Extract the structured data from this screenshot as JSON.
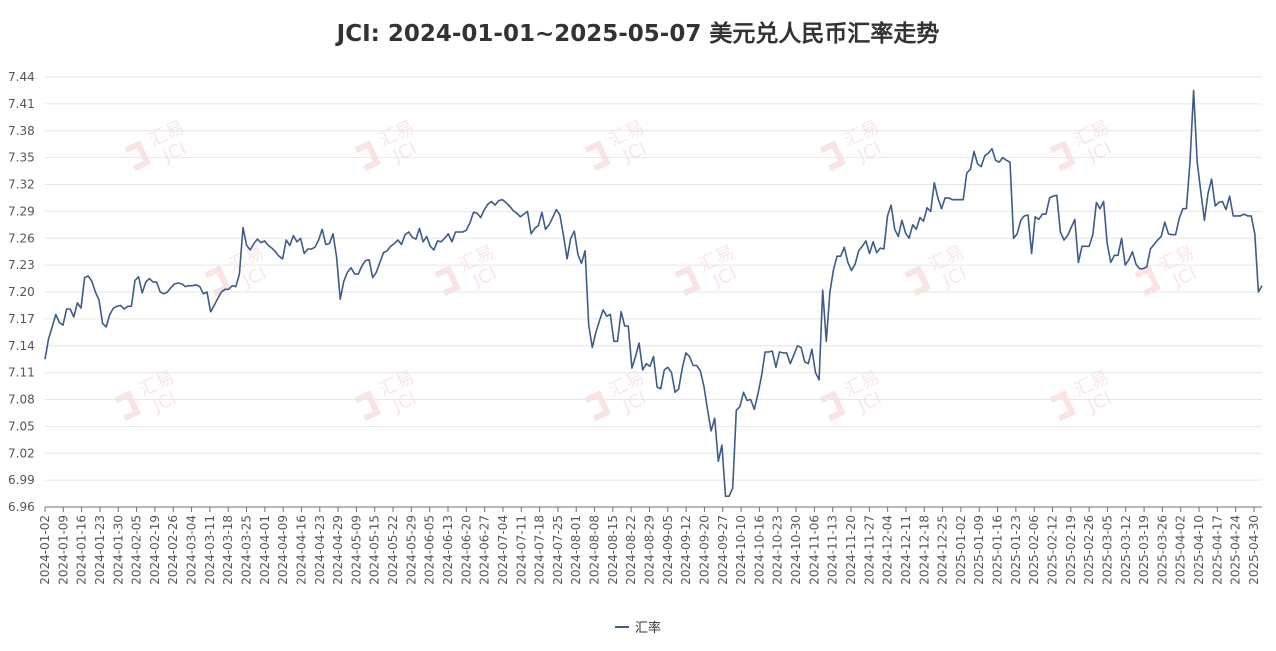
{
  "title": "JCI: 2024-01-01~2025-05-07 美元兑人民币汇率走势",
  "legend": {
    "label": "汇率"
  },
  "watermark": {
    "text": "汇易",
    "subtext": "JCI"
  },
  "colors": {
    "line": "#3e5b8a",
    "grid": "#e6e6e6",
    "axis": "#6e7079",
    "watermark": "#f2c9c9"
  },
  "chart_data": {
    "type": "line",
    "title": "JCI: 2024-01-01~2025-05-07 美元兑人民币汇率走势",
    "xlabel": "",
    "ylabel": "",
    "ylim": [
      6.96,
      7.44
    ],
    "yticks": [
      6.96,
      6.99,
      7.02,
      7.05,
      7.08,
      7.11,
      7.14,
      7.17,
      7.2,
      7.23,
      7.26,
      7.29,
      7.32,
      7.35,
      7.38,
      7.41,
      7.44
    ],
    "grid": "horizontal",
    "legend_position": "bottom",
    "x_tick_labels": [
      "2024-01-02",
      "2024-01-09",
      "2024-01-16",
      "2024-01-23",
      "2024-01-30",
      "2024-02-05",
      "2024-02-19",
      "2024-02-26",
      "2024-03-04",
      "2024-03-11",
      "2024-03-18",
      "2024-03-25",
      "2024-04-01",
      "2024-04-09",
      "2024-04-16",
      "2024-04-23",
      "2024-04-29",
      "2024-05-09",
      "2024-05-15",
      "2024-05-22",
      "2024-05-29",
      "2024-06-05",
      "2024-06-13",
      "2024-06-20",
      "2024-06-27",
      "2024-07-04",
      "2024-07-11",
      "2024-07-18",
      "2024-07-25",
      "2024-08-01",
      "2024-08-08",
      "2024-08-15",
      "2024-08-22",
      "2024-08-29",
      "2024-09-05",
      "2024-09-12",
      "2024-09-20",
      "2024-09-27",
      "2024-10-10",
      "2024-10-16",
      "2024-10-23",
      "2024-10-30",
      "2024-11-06",
      "2024-11-13",
      "2024-11-20",
      "2024-11-27",
      "2024-12-04",
      "2024-12-11",
      "2024-12-18",
      "2024-12-25",
      "2025-01-02",
      "2025-01-09",
      "2025-01-16",
      "2025-01-23",
      "2025-02-06",
      "2025-02-12",
      "2025-02-19",
      "2025-02-26",
      "2025-03-05",
      "2025-03-12",
      "2025-03-19",
      "2025-03-26",
      "2025-04-02",
      "2025-04-10",
      "2025-04-17",
      "2025-04-24",
      "2025-04-30"
    ],
    "series": [
      {
        "name": "汇率",
        "values": [
          7.125,
          7.148,
          7.161,
          7.175,
          7.166,
          7.163,
          7.181,
          7.181,
          7.172,
          7.188,
          7.182,
          7.216,
          7.218,
          7.212,
          7.2,
          7.191,
          7.165,
          7.161,
          7.175,
          7.182,
          7.184,
          7.185,
          7.181,
          7.184,
          7.184,
          7.213,
          7.217,
          7.199,
          7.211,
          7.215,
          7.211,
          7.211,
          7.2,
          7.198,
          7.2,
          7.205,
          7.209,
          7.21,
          7.209,
          7.206,
          7.207,
          7.207,
          7.208,
          7.206,
          7.198,
          7.2,
          7.178,
          7.185,
          7.193,
          7.2,
          7.203,
          7.203,
          7.207,
          7.206,
          7.22,
          7.272,
          7.252,
          7.247,
          7.254,
          7.259,
          7.255,
          7.257,
          7.252,
          7.249,
          7.245,
          7.24,
          7.237,
          7.258,
          7.252,
          7.263,
          7.256,
          7.26,
          7.243,
          7.248,
          7.248,
          7.25,
          7.258,
          7.27,
          7.253,
          7.254,
          7.265,
          7.239,
          7.192,
          7.212,
          7.222,
          7.227,
          7.22,
          7.22,
          7.229,
          7.235,
          7.236,
          7.216,
          7.222,
          7.233,
          7.244,
          7.246,
          7.251,
          7.254,
          7.258,
          7.253,
          7.264,
          7.267,
          7.261,
          7.259,
          7.271,
          7.256,
          7.262,
          7.251,
          7.247,
          7.257,
          7.256,
          7.26,
          7.265,
          7.256,
          7.267,
          7.267,
          7.267,
          7.269,
          7.277,
          7.289,
          7.288,
          7.283,
          7.292,
          7.298,
          7.301,
          7.297,
          7.302,
          7.303,
          7.3,
          7.296,
          7.291,
          7.288,
          7.284,
          7.287,
          7.29,
          7.265,
          7.271,
          7.274,
          7.289,
          7.27,
          7.275,
          7.283,
          7.292,
          7.286,
          7.263,
          7.237,
          7.26,
          7.268,
          7.242,
          7.232,
          7.246,
          7.163,
          7.138,
          7.155,
          7.168,
          7.18,
          7.173,
          7.175,
          7.145,
          7.145,
          7.178,
          7.162,
          7.162,
          7.115,
          7.128,
          7.143,
          7.113,
          7.12,
          7.117,
          7.128,
          7.094,
          7.092,
          7.113,
          7.116,
          7.11,
          7.088,
          7.092,
          7.115,
          7.132,
          7.128,
          7.118,
          7.118,
          7.112,
          7.095,
          7.069,
          7.045,
          7.059,
          7.011,
          7.029,
          6.972,
          6.972,
          6.981,
          7.068,
          7.072,
          7.088,
          7.079,
          7.08,
          7.069,
          7.086,
          7.106,
          7.133,
          7.133,
          7.134,
          7.116,
          7.133,
          7.132,
          7.132,
          7.12,
          7.13,
          7.14,
          7.138,
          7.122,
          7.12,
          7.136,
          7.11,
          7.102,
          7.202,
          7.145,
          7.2,
          7.225,
          7.24,
          7.24,
          7.25,
          7.233,
          7.224,
          7.231,
          7.246,
          7.251,
          7.257,
          7.243,
          7.256,
          7.244,
          7.249,
          7.248,
          7.285,
          7.297,
          7.27,
          7.262,
          7.28,
          7.266,
          7.26,
          7.275,
          7.27,
          7.283,
          7.279,
          7.294,
          7.29,
          7.322,
          7.305,
          7.293,
          7.305,
          7.305,
          7.303,
          7.303,
          7.303,
          7.303,
          7.333,
          7.337,
          7.357,
          7.343,
          7.34,
          7.352,
          7.355,
          7.36,
          7.347,
          7.345,
          7.35,
          7.347,
          7.345,
          7.26,
          7.265,
          7.28,
          7.285,
          7.286,
          7.243,
          7.284,
          7.281,
          7.287,
          7.287,
          7.305,
          7.307,
          7.308,
          7.267,
          7.258,
          7.263,
          7.272,
          7.281,
          7.233,
          7.251,
          7.251,
          7.251,
          7.264,
          7.3,
          7.293,
          7.301,
          7.254,
          7.233,
          7.241,
          7.241,
          7.26,
          7.23,
          7.236,
          7.245,
          7.231,
          7.226,
          7.226,
          7.228,
          7.248,
          7.253,
          7.258,
          7.262,
          7.278,
          7.265,
          7.264,
          7.264,
          7.282,
          7.293,
          7.293,
          7.345,
          7.425,
          7.345,
          7.312,
          7.28,
          7.31,
          7.326,
          7.296,
          7.3,
          7.301,
          7.292,
          7.307,
          7.285,
          7.285,
          7.285,
          7.287,
          7.285,
          7.285,
          7.265,
          7.2,
          7.207
        ]
      }
    ]
  }
}
